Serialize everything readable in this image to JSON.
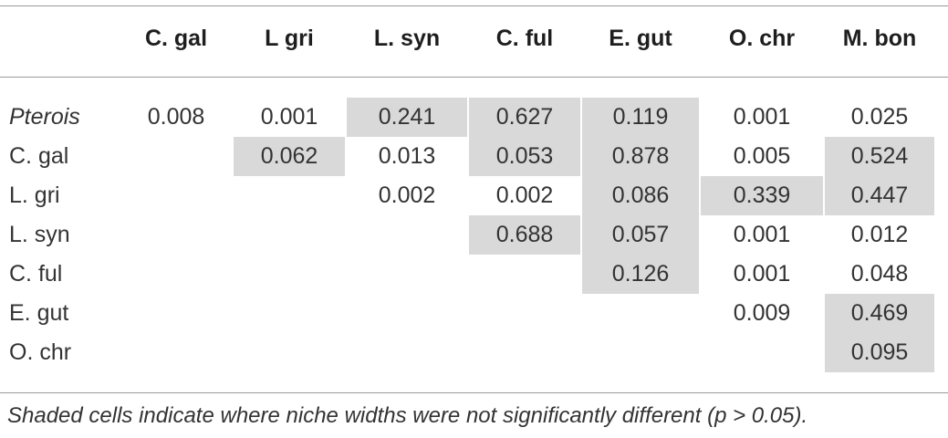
{
  "table": {
    "columns": [
      "",
      "C. gal",
      "L gri",
      "L. syn",
      "C. ful",
      "E. gut",
      "O. chr",
      "M. bon"
    ],
    "rows": [
      {
        "label": "Pterois",
        "italic": true,
        "cells": [
          "0.008",
          "0.001",
          "0.241",
          "0.627",
          "0.119",
          "0.001",
          "0.025"
        ],
        "shaded": [
          false,
          false,
          true,
          true,
          true,
          false,
          false
        ]
      },
      {
        "label": "C. gal",
        "italic": false,
        "cells": [
          "",
          "0.062",
          "0.013",
          "0.053",
          "0.878",
          "0.005",
          "0.524"
        ],
        "shaded": [
          false,
          true,
          false,
          true,
          true,
          false,
          true
        ]
      },
      {
        "label": "L. gri",
        "italic": false,
        "cells": [
          "",
          "",
          "0.002",
          "0.002",
          "0.086",
          "0.339",
          "0.447"
        ],
        "shaded": [
          false,
          false,
          false,
          false,
          true,
          true,
          true
        ]
      },
      {
        "label": "L. syn",
        "italic": false,
        "cells": [
          "",
          "",
          "",
          "0.688",
          "0.057",
          "0.001",
          "0.012"
        ],
        "shaded": [
          false,
          false,
          false,
          true,
          true,
          false,
          false
        ]
      },
      {
        "label": "C. ful",
        "italic": false,
        "cells": [
          "",
          "",
          "",
          "",
          "0.126",
          "0.001",
          "0.048"
        ],
        "shaded": [
          false,
          false,
          false,
          false,
          true,
          false,
          false
        ]
      },
      {
        "label": "E. gut",
        "italic": false,
        "cells": [
          "",
          "",
          "",
          "",
          "",
          "0.009",
          "0.469"
        ],
        "shaded": [
          false,
          false,
          false,
          false,
          false,
          false,
          true
        ]
      },
      {
        "label": "O. chr",
        "italic": false,
        "cells": [
          "",
          "",
          "",
          "",
          "",
          "",
          "0.095"
        ],
        "shaded": [
          false,
          false,
          false,
          false,
          false,
          false,
          true
        ]
      }
    ]
  },
  "footnote": "Shaded cells indicate where niche widths were not significantly different (p > 0.05).",
  "colors": {
    "shade": "#d9d9d9",
    "rule": "#9a9a9a",
    "text": "#333333"
  }
}
